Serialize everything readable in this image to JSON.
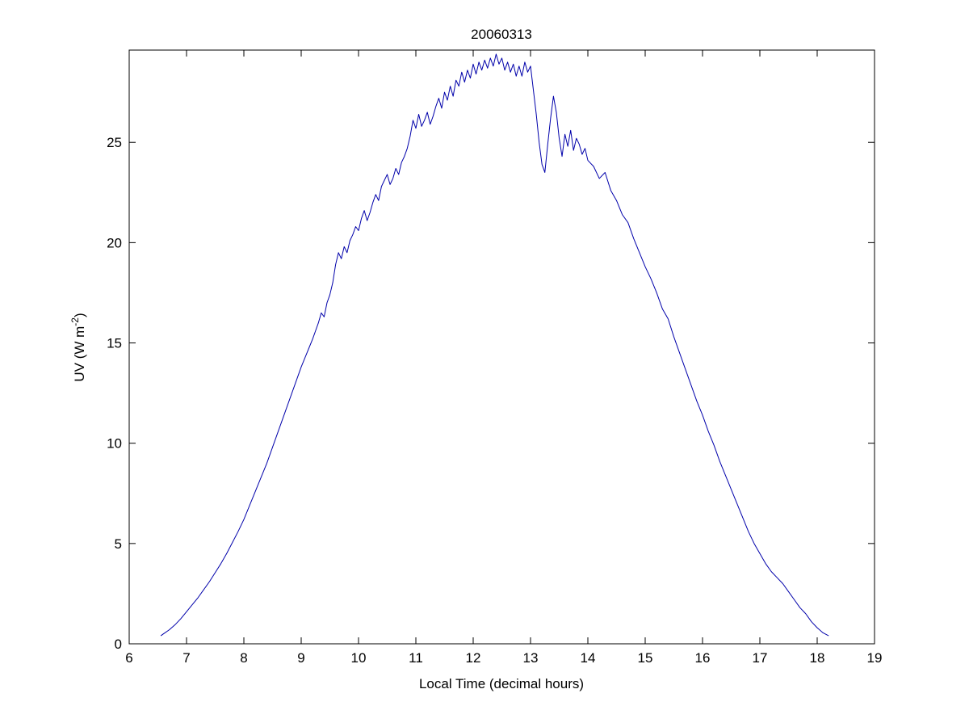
{
  "chart_data": {
    "type": "line",
    "title": "20060313",
    "xlabel": "Local Time (decimal hours)",
    "ylabel_prefix": "UV (W m",
    "ylabel_sup": "-2",
    "ylabel_suffix": ")",
    "xlim": [
      6,
      19
    ],
    "ylim": [
      0,
      29.6
    ],
    "xticks": [
      6,
      7,
      8,
      9,
      10,
      11,
      12,
      13,
      14,
      15,
      16,
      17,
      18,
      19
    ],
    "yticks": [
      0,
      5,
      10,
      15,
      20,
      25
    ],
    "grid": false,
    "legend": "none",
    "line_color": "#0000aa",
    "axis_color": "#000000",
    "background": "#ffffff",
    "points": [
      [
        6.55,
        0.4
      ],
      [
        6.6,
        0.5
      ],
      [
        6.7,
        0.7
      ],
      [
        6.8,
        0.95
      ],
      [
        6.9,
        1.25
      ],
      [
        7.0,
        1.6
      ],
      [
        7.1,
        1.95
      ],
      [
        7.2,
        2.3
      ],
      [
        7.3,
        2.7
      ],
      [
        7.4,
        3.1
      ],
      [
        7.5,
        3.55
      ],
      [
        7.6,
        4.0
      ],
      [
        7.7,
        4.5
      ],
      [
        7.8,
        5.05
      ],
      [
        7.9,
        5.6
      ],
      [
        8.0,
        6.2
      ],
      [
        8.1,
        6.9
      ],
      [
        8.2,
        7.6
      ],
      [
        8.3,
        8.3
      ],
      [
        8.4,
        9.0
      ],
      [
        8.5,
        9.8
      ],
      [
        8.6,
        10.6
      ],
      [
        8.7,
        11.4
      ],
      [
        8.8,
        12.2
      ],
      [
        8.9,
        13.0
      ],
      [
        9.0,
        13.8
      ],
      [
        9.1,
        14.5
      ],
      [
        9.2,
        15.2
      ],
      [
        9.25,
        15.6
      ],
      [
        9.3,
        16.0
      ],
      [
        9.35,
        16.5
      ],
      [
        9.4,
        16.3
      ],
      [
        9.45,
        17.0
      ],
      [
        9.5,
        17.4
      ],
      [
        9.55,
        18.0
      ],
      [
        9.6,
        18.9
      ],
      [
        9.65,
        19.5
      ],
      [
        9.7,
        19.2
      ],
      [
        9.75,
        19.8
      ],
      [
        9.8,
        19.5
      ],
      [
        9.85,
        20.1
      ],
      [
        9.9,
        20.4
      ],
      [
        9.95,
        20.8
      ],
      [
        10.0,
        20.6
      ],
      [
        10.05,
        21.2
      ],
      [
        10.1,
        21.6
      ],
      [
        10.15,
        21.1
      ],
      [
        10.2,
        21.5
      ],
      [
        10.25,
        22.0
      ],
      [
        10.3,
        22.4
      ],
      [
        10.35,
        22.1
      ],
      [
        10.4,
        22.8
      ],
      [
        10.45,
        23.1
      ],
      [
        10.5,
        23.4
      ],
      [
        10.55,
        22.9
      ],
      [
        10.6,
        23.2
      ],
      [
        10.65,
        23.7
      ],
      [
        10.7,
        23.4
      ],
      [
        10.75,
        24.0
      ],
      [
        10.8,
        24.3
      ],
      [
        10.85,
        24.7
      ],
      [
        10.9,
        25.3
      ],
      [
        10.95,
        26.1
      ],
      [
        11.0,
        25.7
      ],
      [
        11.05,
        26.4
      ],
      [
        11.1,
        25.8
      ],
      [
        11.15,
        26.1
      ],
      [
        11.2,
        26.5
      ],
      [
        11.25,
        25.9
      ],
      [
        11.3,
        26.3
      ],
      [
        11.35,
        26.8
      ],
      [
        11.4,
        27.2
      ],
      [
        11.45,
        26.7
      ],
      [
        11.5,
        27.5
      ],
      [
        11.55,
        27.1
      ],
      [
        11.6,
        27.8
      ],
      [
        11.65,
        27.3
      ],
      [
        11.7,
        28.1
      ],
      [
        11.75,
        27.8
      ],
      [
        11.8,
        28.5
      ],
      [
        11.85,
        28.0
      ],
      [
        11.9,
        28.6
      ],
      [
        11.95,
        28.2
      ],
      [
        12.0,
        28.9
      ],
      [
        12.05,
        28.4
      ],
      [
        12.1,
        29.0
      ],
      [
        12.15,
        28.6
      ],
      [
        12.2,
        29.1
      ],
      [
        12.25,
        28.7
      ],
      [
        12.3,
        29.2
      ],
      [
        12.35,
        28.8
      ],
      [
        12.4,
        29.4
      ],
      [
        12.45,
        28.9
      ],
      [
        12.5,
        29.2
      ],
      [
        12.55,
        28.6
      ],
      [
        12.6,
        29.0
      ],
      [
        12.65,
        28.5
      ],
      [
        12.7,
        28.9
      ],
      [
        12.75,
        28.3
      ],
      [
        12.8,
        28.8
      ],
      [
        12.85,
        28.3
      ],
      [
        12.9,
        29.0
      ],
      [
        12.95,
        28.5
      ],
      [
        13.0,
        28.8
      ],
      [
        13.05,
        27.6
      ],
      [
        13.1,
        26.4
      ],
      [
        13.15,
        25.0
      ],
      [
        13.2,
        23.9
      ],
      [
        13.25,
        23.5
      ],
      [
        13.3,
        24.9
      ],
      [
        13.35,
        26.2
      ],
      [
        13.4,
        27.3
      ],
      [
        13.45,
        26.5
      ],
      [
        13.5,
        25.2
      ],
      [
        13.55,
        24.3
      ],
      [
        13.6,
        25.4
      ],
      [
        13.65,
        24.8
      ],
      [
        13.7,
        25.6
      ],
      [
        13.75,
        24.6
      ],
      [
        13.8,
        25.2
      ],
      [
        13.85,
        24.9
      ],
      [
        13.9,
        24.4
      ],
      [
        13.95,
        24.7
      ],
      [
        14.0,
        24.1
      ],
      [
        14.1,
        23.8
      ],
      [
        14.2,
        23.2
      ],
      [
        14.3,
        23.5
      ],
      [
        14.4,
        22.6
      ],
      [
        14.5,
        22.1
      ],
      [
        14.6,
        21.4
      ],
      [
        14.7,
        21.0
      ],
      [
        14.8,
        20.2
      ],
      [
        14.9,
        19.5
      ],
      [
        15.0,
        18.8
      ],
      [
        15.1,
        18.2
      ],
      [
        15.2,
        17.5
      ],
      [
        15.3,
        16.7
      ],
      [
        15.4,
        16.2
      ],
      [
        15.5,
        15.3
      ],
      [
        15.6,
        14.5
      ],
      [
        15.7,
        13.7
      ],
      [
        15.8,
        12.9
      ],
      [
        15.9,
        12.1
      ],
      [
        16.0,
        11.4
      ],
      [
        16.1,
        10.6
      ],
      [
        16.2,
        9.9
      ],
      [
        16.3,
        9.1
      ],
      [
        16.4,
        8.4
      ],
      [
        16.5,
        7.7
      ],
      [
        16.6,
        7.0
      ],
      [
        16.7,
        6.3
      ],
      [
        16.8,
        5.6
      ],
      [
        16.9,
        5.0
      ],
      [
        17.0,
        4.5
      ],
      [
        17.1,
        4.0
      ],
      [
        17.2,
        3.6
      ],
      [
        17.3,
        3.3
      ],
      [
        17.4,
        3.0
      ],
      [
        17.5,
        2.6
      ],
      [
        17.6,
        2.2
      ],
      [
        17.7,
        1.8
      ],
      [
        17.8,
        1.5
      ],
      [
        17.9,
        1.1
      ],
      [
        18.0,
        0.8
      ],
      [
        18.1,
        0.55
      ],
      [
        18.2,
        0.4
      ]
    ]
  }
}
